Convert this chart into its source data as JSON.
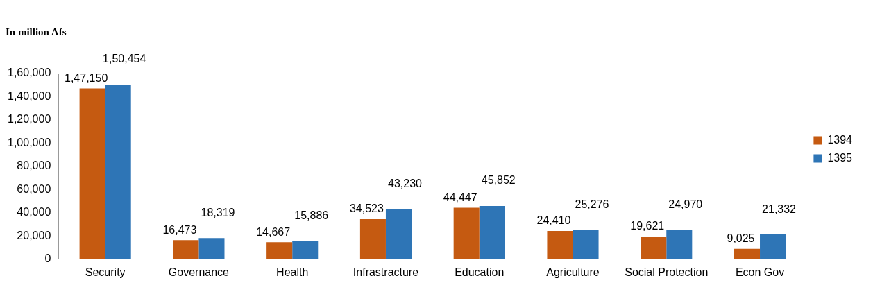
{
  "chart_data": {
    "type": "bar",
    "title": "In million Afs",
    "categories": [
      "Security",
      "Governance",
      "Health",
      "Infrastracture",
      "Education",
      "Agriculture",
      "Social Protection",
      "Econ Gov"
    ],
    "series": [
      {
        "name": "1394",
        "color": "#c55a11",
        "values": [
          147150,
          16473,
          14667,
          34523,
          44447,
          24410,
          19621,
          9025
        ],
        "value_labels": [
          "1,47,150",
          "16,473",
          "14,667",
          "34,523",
          "44,447",
          "24,410",
          "19,621",
          "9,025"
        ]
      },
      {
        "name": "1395",
        "color": "#2e75b6",
        "values": [
          150454,
          18319,
          15886,
          43230,
          45852,
          25276,
          24970,
          21332
        ],
        "value_labels": [
          "1,50,454",
          "18,319",
          "15,886",
          "43,230",
          "45,852",
          "25,276",
          "24,970",
          "21,332"
        ]
      }
    ],
    "ylim": [
      0,
      160000
    ],
    "yticks": [
      0,
      {
        "value": 20000,
        "label": "20,000"
      },
      {
        "value": 40000,
        "label": "40,000"
      },
      {
        "value": 60000,
        "label": "60,000"
      },
      {
        "value": 80000,
        "label": "80,000"
      },
      {
        "value": 100000,
        "label": "1,00,000"
      },
      {
        "value": 120000,
        "label": "1,20,000"
      },
      {
        "value": 140000,
        "label": "1,40,000"
      },
      {
        "value": 160000,
        "label": "1,60,000"
      }
    ],
    "grid": false,
    "legend": "right"
  }
}
